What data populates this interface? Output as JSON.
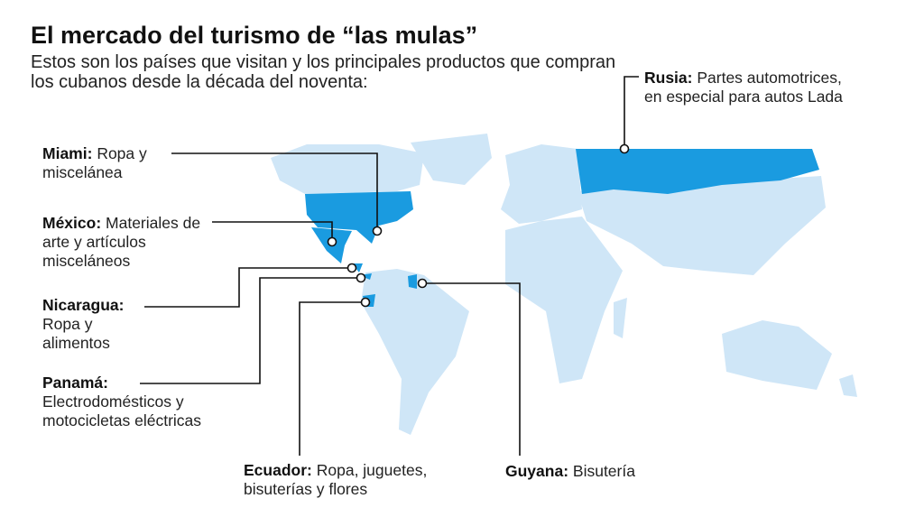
{
  "header": {
    "title": "El mercado del turismo de “las mulas”",
    "subtitle": "Estos son los países que visitan y los principales productos que compran los cubanos desde la década del noventa:"
  },
  "callouts": [
    {
      "place": "Miami:",
      "text": "Ropa y miscelánea"
    },
    {
      "place": "México:",
      "text": "Materiales de arte y artículos misceláneos"
    },
    {
      "place": "Nicaragua:",
      "text": "Ropa y alimentos"
    },
    {
      "place": "Panamá:",
      "text": "Electrodomésticos y motocicletas eléctricas"
    },
    {
      "place": "Ecuador:",
      "text": "Ropa, juguetes, bisuterías y flores"
    },
    {
      "place": "Guyana:",
      "text": "Bisutería"
    },
    {
      "place": "Rusia:",
      "text": "Partes automotrices, en especial para autos Lada"
    }
  ]
}
